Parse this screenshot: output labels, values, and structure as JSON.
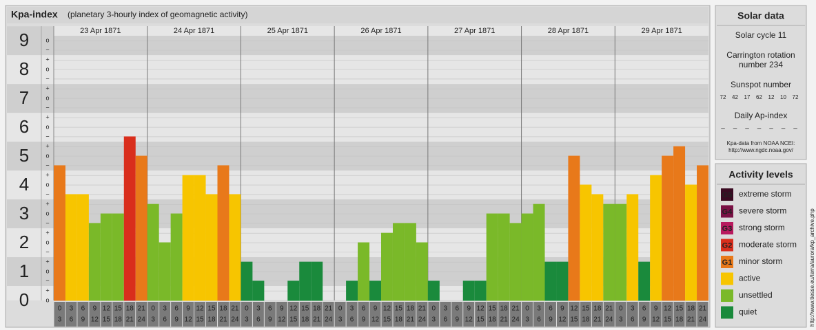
{
  "chart_data": {
    "type": "bar",
    "title": "Kpa-index",
    "subtitle": "(planetary 3-hourly index of geomagnetic activity)",
    "days": [
      "23 Apr 1871",
      "24 Apr 1871",
      "25 Apr 1871",
      "26 Apr 1871",
      "27 Apr 1871",
      "28 Apr 1871",
      "29 Apr 1871"
    ],
    "hours": [
      {
        "from": 0,
        "to": 3
      },
      {
        "from": 3,
        "to": 6
      },
      {
        "from": 6,
        "to": 9
      },
      {
        "from": 9,
        "to": 12
      },
      {
        "from": 12,
        "to": 15
      },
      {
        "from": 15,
        "to": 18
      },
      {
        "from": 18,
        "to": 21
      },
      {
        "from": 21,
        "to": 24
      }
    ],
    "values": [
      4.67,
      3.67,
      3.67,
      2.67,
      3,
      3,
      5.67,
      5,
      3.33,
      2,
      3,
      4.33,
      4.33,
      3.67,
      4.67,
      3.67,
      1.33,
      0.67,
      0,
      0,
      0.67,
      1.33,
      1.33,
      0,
      0,
      0.67,
      2,
      0.67,
      2.33,
      2.67,
      2.67,
      2,
      0.67,
      0,
      0,
      0.67,
      0.67,
      3,
      3,
      2.67,
      3,
      3.33,
      1.33,
      1.33,
      5,
      4,
      3.67,
      3.33,
      3.33,
      3.67,
      1.33,
      4.33,
      5,
      5.33,
      4,
      4.67
    ],
    "colors": [
      "#e8791a",
      "#f7c500",
      "#f7c500",
      "#7ab929",
      "#7ab929",
      "#7ab929",
      "#d92e1c",
      "#e8791a",
      "#7ab929",
      "#7ab929",
      "#7ab929",
      "#f7c500",
      "#f7c500",
      "#f7c500",
      "#e8791a",
      "#f7c500",
      "#1a8a3c",
      "#1a8a3c",
      "#1a8a3c",
      "#1a8a3c",
      "#1a8a3c",
      "#1a8a3c",
      "#1a8a3c",
      "#1a8a3c",
      "#1a8a3c",
      "#1a8a3c",
      "#7ab929",
      "#1a8a3c",
      "#7ab929",
      "#7ab929",
      "#7ab929",
      "#7ab929",
      "#1a8a3c",
      "#1a8a3c",
      "#1a8a3c",
      "#1a8a3c",
      "#1a8a3c",
      "#7ab929",
      "#7ab929",
      "#7ab929",
      "#7ab929",
      "#7ab929",
      "#1a8a3c",
      "#1a8a3c",
      "#e8791a",
      "#f7c500",
      "#f7c500",
      "#7ab929",
      "#7ab929",
      "#f7c500",
      "#1a8a3c",
      "#f7c500",
      "#e8791a",
      "#e8791a",
      "#f7c500",
      "#e8791a"
    ],
    "ylim": [
      0,
      9.17
    ],
    "yticks": [
      0,
      1,
      2,
      3,
      4,
      5,
      6,
      7,
      8,
      9
    ],
    "yminorticks": [
      {
        "value": 0,
        "label": "o"
      },
      {
        "value": 0.33,
        "label": "+"
      },
      {
        "value": 0.67,
        "label": "−"
      },
      {
        "value": 1,
        "label": "o"
      },
      {
        "value": 1.33,
        "label": "+"
      },
      {
        "value": 1.67,
        "label": "−"
      },
      {
        "value": 2,
        "label": "o"
      },
      {
        "value": 2.33,
        "label": "+"
      },
      {
        "value": 2.67,
        "label": "−"
      },
      {
        "value": 3,
        "label": "o"
      },
      {
        "value": 3.33,
        "label": "+"
      },
      {
        "value": 3.67,
        "label": "−"
      },
      {
        "value": 4,
        "label": "o"
      },
      {
        "value": 4.33,
        "label": "+"
      },
      {
        "value": 4.67,
        "label": "−"
      },
      {
        "value": 5,
        "label": "o"
      },
      {
        "value": 5.33,
        "label": "+"
      },
      {
        "value": 5.67,
        "label": "−"
      },
      {
        "value": 6,
        "label": "o"
      },
      {
        "value": 6.33,
        "label": "+"
      },
      {
        "value": 6.67,
        "label": "−"
      },
      {
        "value": 7,
        "label": "o"
      },
      {
        "value": 7.33,
        "label": "+"
      },
      {
        "value": 7.67,
        "label": "−"
      },
      {
        "value": 8,
        "label": "o"
      },
      {
        "value": 8.33,
        "label": "+"
      },
      {
        "value": 8.67,
        "label": "−"
      },
      {
        "value": 9,
        "label": "o"
      }
    ],
    "grid": true
  },
  "solar_data": {
    "title": "Solar data",
    "cycle": "Solar cycle 11",
    "rotation": [
      "Carrington rotation",
      "number 234"
    ],
    "sunspot_title": "Sunspot number",
    "sunspot_numbers": [
      "72",
      "42",
      "17",
      "62",
      "12",
      "10",
      "72"
    ],
    "ap_title": "Daily Ap-index",
    "ap_values": [
      "–",
      "–",
      "–",
      "–",
      "–",
      "–",
      "–"
    ],
    "source": [
      "Kpa-data from NOAA NCEI:",
      "http://www.ngdc.noaa.gov/"
    ]
  },
  "activity_levels": {
    "title": "Activity levels",
    "items": [
      {
        "badge": "G5",
        "label": "extreme storm",
        "color": "#3a0a22"
      },
      {
        "badge": "G4",
        "label": "severe storm",
        "color": "#7a1145"
      },
      {
        "badge": "G3",
        "label": "strong storm",
        "color": "#b81a5e"
      },
      {
        "badge": "G2",
        "label": "moderate storm",
        "color": "#d92e1c"
      },
      {
        "badge": "G1",
        "label": "minor storm",
        "color": "#e8791a"
      },
      {
        "label": "active",
        "color": "#f7c500"
      },
      {
        "label": "unsettled",
        "color": "#7ab929"
      },
      {
        "label": "quiet",
        "color": "#1a8a3c"
      }
    ]
  },
  "credit": "http://www.tiesse.eu/terra/aurora/kp_archive.php"
}
